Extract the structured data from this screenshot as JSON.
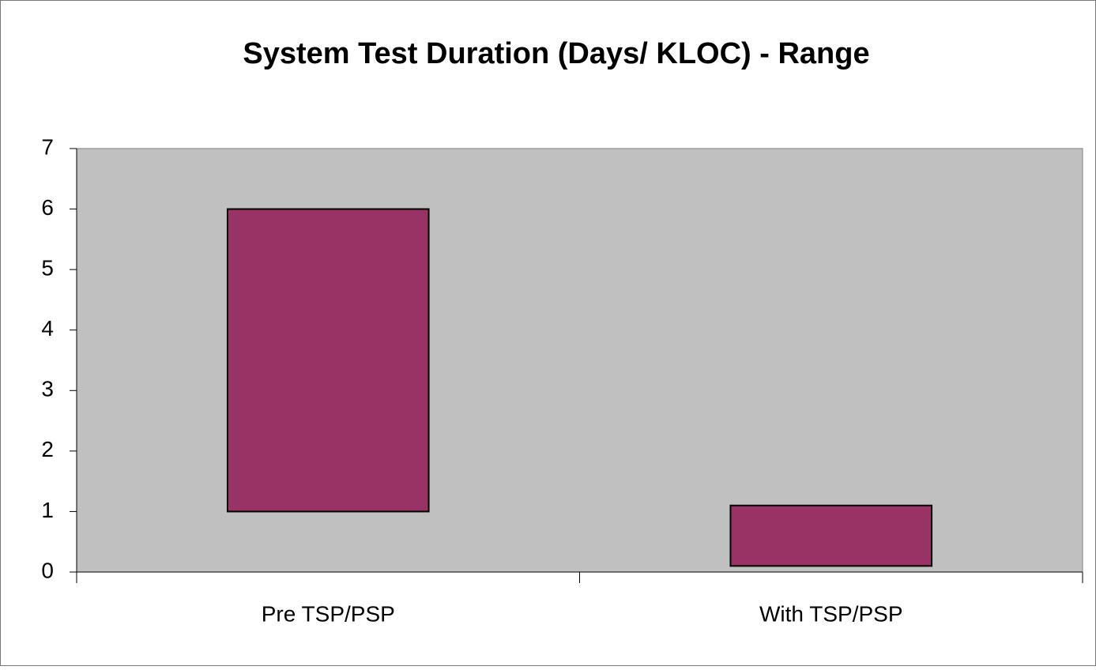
{
  "chart_data": {
    "type": "floating-bar",
    "title": "System Test Duration (Days/ KLOC) - Range",
    "categories": [
      "Pre TSP/PSP",
      "With TSP/PSP"
    ],
    "low": [
      1,
      0.1
    ],
    "high": [
      6,
      1.1
    ],
    "color": "#993366",
    "plot_background": "#c0c0c0",
    "ylim": [
      0,
      7
    ],
    "yticks": [
      0,
      1,
      2,
      3,
      4,
      5,
      6,
      7
    ],
    "grid": false
  }
}
